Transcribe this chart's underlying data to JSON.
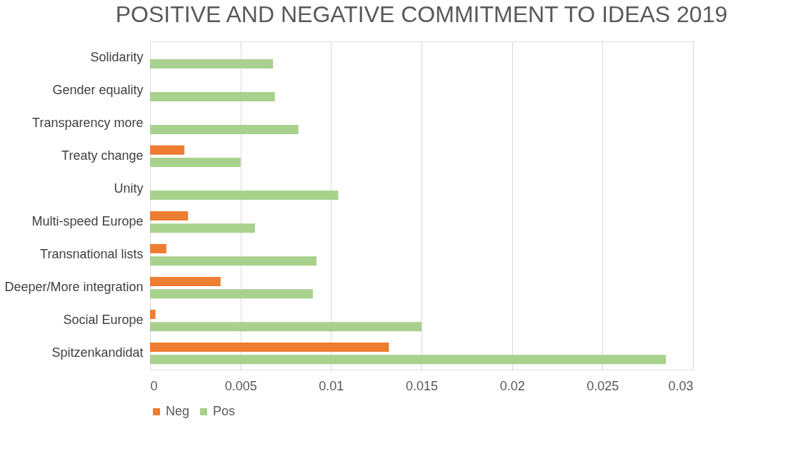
{
  "chart_data": {
    "type": "bar",
    "orientation": "horizontal",
    "title": "POSITIVE AND NEGATIVE COMMITMENT TO IDEAS 2019",
    "categories": [
      "Solidarity",
      "Gender equality",
      "Transparency more",
      "Treaty change",
      "Unity",
      "Multi-speed Europe",
      "Transnational lists",
      "Deeper/More integration",
      "Social Europe",
      "Spitzenkandidat"
    ],
    "series": [
      {
        "name": "Neg",
        "color": "#ed7d31",
        "values": [
          0,
          0,
          0,
          0.0019,
          0,
          0.0021,
          0.0009,
          0.0039,
          0.0003,
          0.0132
        ]
      },
      {
        "name": "Pos",
        "color": "#a9d18e",
        "values": [
          0.0068,
          0.0069,
          0.0082,
          0.005,
          0.0104,
          0.0058,
          0.0092,
          0.009,
          0.015,
          0.0285
        ]
      }
    ],
    "xlim": [
      0,
      0.03
    ],
    "xticks": [
      0,
      0.005,
      0.01,
      0.015,
      0.02,
      0.025,
      0.03
    ],
    "grid": "x",
    "legend": "bottom"
  }
}
